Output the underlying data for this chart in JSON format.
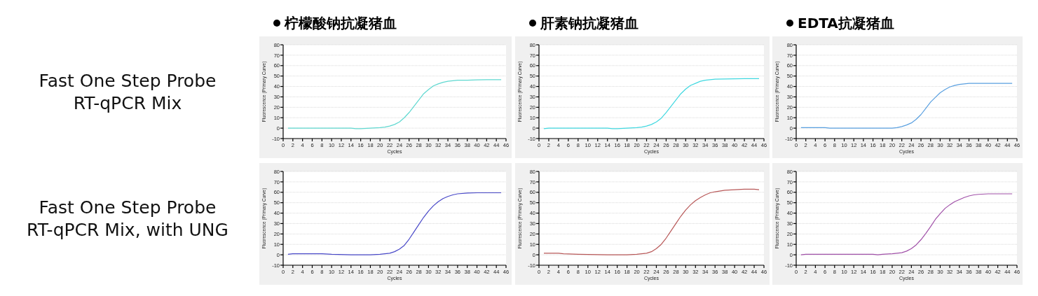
{
  "chart_data": [
    {
      "type": "line",
      "title": "柠檬酸钠抗凝猪血",
      "xlabel": "Cycles",
      "ylabel": "Fluorescence (Primary Curve)",
      "annotations": [
        "Fast One Step Probe\nRT-qPCR Mix"
      ],
      "xlim": [
        0,
        46
      ],
      "ylim": [
        -10,
        80
      ],
      "xticks": [
        0,
        2,
        4,
        6,
        8,
        10,
        12,
        14,
        16,
        18,
        20,
        22,
        24,
        26,
        28,
        30,
        32,
        34,
        36,
        38,
        40,
        42,
        44,
        46
      ],
      "yticks": [
        -10,
        0,
        10,
        20,
        30,
        40,
        50,
        60,
        70,
        80
      ],
      "grid": "y",
      "series": [
        {
          "color": "#5fd8d0",
          "x": [
            1,
            4,
            8,
            12,
            14,
            15,
            16,
            18,
            20,
            21,
            22,
            23,
            24,
            25,
            26,
            27,
            28,
            29,
            30,
            31,
            32,
            33,
            34,
            35,
            36,
            38,
            40,
            42,
            45
          ],
          "values": [
            0,
            0,
            0,
            0,
            0,
            -0.5,
            -0.5,
            0,
            0.5,
            1,
            2,
            3.5,
            6,
            10,
            15,
            21,
            27,
            33,
            37,
            40.5,
            42.5,
            44,
            45,
            45.5,
            46,
            46,
            46.3,
            46.5,
            46.5
          ]
        }
      ]
    },
    {
      "type": "line",
      "title": "肝素钠抗凝猪血",
      "xlabel": "Cycles",
      "ylabel": "Fluorescence (Primary Curve)",
      "xlim": [
        0,
        46
      ],
      "ylim": [
        -10,
        80
      ],
      "xticks": [
        0,
        2,
        4,
        6,
        8,
        10,
        12,
        14,
        16,
        18,
        20,
        22,
        24,
        26,
        28,
        30,
        32,
        34,
        36,
        38,
        40,
        42,
        44,
        46
      ],
      "yticks": [
        -10,
        0,
        10,
        20,
        30,
        40,
        50,
        60,
        70,
        80
      ],
      "grid": "y",
      "series": [
        {
          "color": "#40d8e0",
          "x": [
            1,
            2,
            4,
            8,
            12,
            14,
            15,
            16,
            18,
            20,
            21,
            22,
            23,
            24,
            25,
            26,
            27,
            28,
            29,
            30,
            31,
            32,
            33,
            34,
            35,
            36,
            38,
            40,
            42,
            45
          ],
          "values": [
            -0.5,
            0,
            0,
            0,
            0,
            0,
            -0.5,
            -0.5,
            0,
            0.5,
            1,
            2,
            3.5,
            6,
            9.5,
            15,
            21,
            27,
            33,
            37.5,
            41,
            43,
            45,
            46,
            46.5,
            47,
            47.2,
            47.3,
            47.5,
            47.5
          ]
        }
      ]
    },
    {
      "type": "line",
      "title": "EDTA抗凝猪血",
      "xlabel": "Cycles",
      "ylabel": "Fluorescence (Primary Curve)",
      "xlim": [
        0,
        46
      ],
      "ylim": [
        -10,
        80
      ],
      "xticks": [
        0,
        2,
        4,
        6,
        8,
        10,
        12,
        14,
        16,
        18,
        20,
        22,
        24,
        26,
        28,
        30,
        32,
        34,
        36,
        38,
        40,
        42,
        44,
        46
      ],
      "yticks": [
        -10,
        0,
        10,
        20,
        30,
        40,
        50,
        60,
        70,
        80
      ],
      "grid": "y",
      "series": [
        {
          "color": "#5aa0e0",
          "x": [
            1,
            6,
            7,
            12,
            16,
            20,
            21,
            22,
            23,
            24,
            25,
            26,
            27,
            28,
            29,
            30,
            31,
            32,
            33,
            34,
            35,
            36,
            38,
            40,
            45
          ],
          "values": [
            0.5,
            0.5,
            0,
            0,
            0,
            0,
            0.5,
            1.5,
            3,
            5,
            8.5,
            13,
            19,
            25,
            29.5,
            34,
            37,
            39.5,
            41,
            42,
            42.5,
            43,
            43,
            43,
            43
          ]
        }
      ]
    },
    {
      "type": "line",
      "xlabel": "Cycles",
      "ylabel": "Fluorescence (Primary Curve)",
      "annotations": [
        "Fast One Step Probe\nRT-qPCR Mix, with UNG"
      ],
      "xlim": [
        0,
        46
      ],
      "ylim": [
        -10,
        80
      ],
      "xticks": [
        0,
        2,
        4,
        6,
        8,
        10,
        12,
        14,
        16,
        18,
        20,
        22,
        24,
        26,
        28,
        30,
        32,
        34,
        36,
        38,
        40,
        42,
        44,
        46
      ],
      "yticks": [
        -10,
        0,
        10,
        20,
        30,
        40,
        50,
        60,
        70,
        80
      ],
      "grid": "y",
      "series": [
        {
          "color": "#4848c8",
          "x": [
            1,
            2,
            8,
            10,
            14,
            18,
            20,
            21,
            22,
            23,
            24,
            25,
            26,
            27,
            28,
            29,
            30,
            31,
            32,
            33,
            34,
            35,
            36,
            38,
            40,
            42,
            45
          ],
          "values": [
            0.5,
            1,
            1,
            0.5,
            0,
            0,
            0.5,
            1,
            1.5,
            3,
            5.5,
            9,
            15,
            22,
            29,
            36,
            42,
            47,
            51,
            54,
            56,
            57.5,
            58.5,
            59.3,
            59.5,
            59.5,
            59.5
          ]
        }
      ]
    },
    {
      "type": "line",
      "xlabel": "Cycles",
      "ylabel": "Fluorescence (Primary Curve)",
      "xlim": [
        0,
        46
      ],
      "ylim": [
        -10,
        80
      ],
      "xticks": [
        0,
        2,
        4,
        6,
        8,
        10,
        12,
        14,
        16,
        18,
        20,
        22,
        24,
        26,
        28,
        30,
        32,
        34,
        36,
        38,
        40,
        42,
        44,
        46
      ],
      "yticks": [
        -10,
        0,
        10,
        20,
        30,
        40,
        50,
        60,
        70,
        80
      ],
      "grid": "y",
      "series": [
        {
          "color": "#b85858",
          "x": [
            1,
            4,
            5,
            8,
            14,
            18,
            20,
            22,
            23,
            24,
            25,
            26,
            27,
            28,
            29,
            30,
            31,
            32,
            33,
            34,
            35,
            36,
            38,
            40,
            42,
            44,
            45
          ],
          "values": [
            1.5,
            1.5,
            1,
            0.5,
            0,
            0,
            0.5,
            1.5,
            3,
            6,
            10,
            16,
            23,
            30,
            37,
            43,
            48,
            52,
            55,
            57.5,
            59.5,
            60.5,
            62,
            62.5,
            63,
            63,
            62.5
          ]
        }
      ]
    },
    {
      "type": "line",
      "xlabel": "Cycles",
      "ylabel": "Fluorescence (Primary Curve)",
      "xlim": [
        0,
        46
      ],
      "ylim": [
        -10,
        80
      ],
      "xticks": [
        0,
        2,
        4,
        6,
        8,
        10,
        12,
        14,
        16,
        18,
        20,
        22,
        24,
        26,
        28,
        30,
        32,
        34,
        36,
        38,
        40,
        42,
        44,
        46
      ],
      "yticks": [
        -10,
        0,
        10,
        20,
        30,
        40,
        50,
        60,
        70,
        80
      ],
      "grid": "y",
      "series": [
        {
          "color": "#a050a8",
          "x": [
            1,
            2,
            8,
            16,
            17,
            18,
            20,
            21,
            22,
            23,
            24,
            25,
            26,
            27,
            28,
            29,
            30,
            31,
            32,
            33,
            34,
            35,
            36,
            37,
            38,
            40,
            45
          ],
          "values": [
            0,
            0.5,
            0.5,
            0.5,
            0,
            0.5,
            1,
            1.5,
            2,
            3.5,
            6,
            9.5,
            14.5,
            20.5,
            27,
            34,
            39.5,
            44.5,
            48,
            51,
            53,
            55,
            56.5,
            57.5,
            58,
            58.5,
            58.5
          ]
        }
      ]
    }
  ]
}
